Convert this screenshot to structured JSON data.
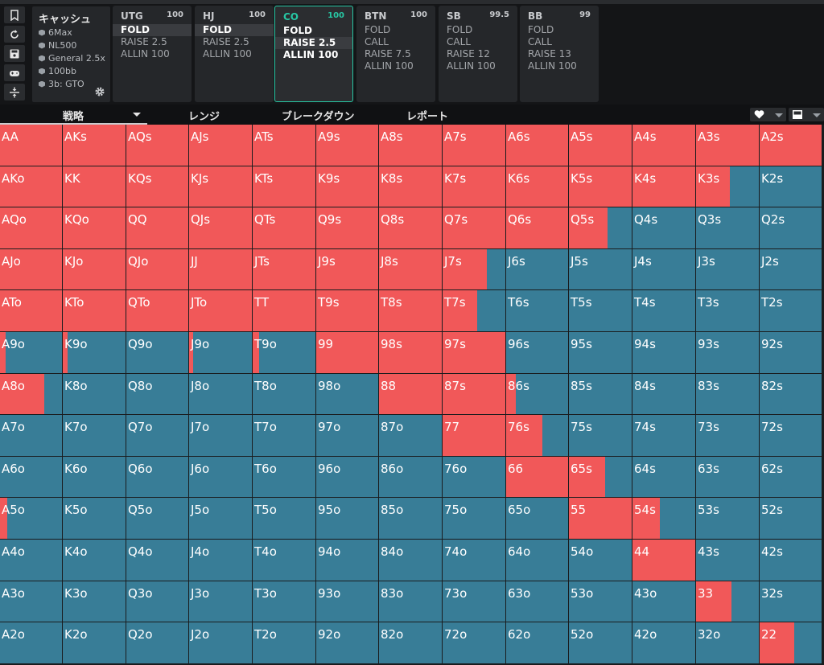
{
  "sidebar_tools": [
    {
      "name": "bookmark-icon"
    },
    {
      "name": "reset-icon"
    },
    {
      "name": "save-icon"
    },
    {
      "name": "gamepad-icon"
    },
    {
      "name": "compress-icon"
    }
  ],
  "info": {
    "title": "キャッシュ",
    "lines": [
      "6Max",
      "NL500",
      "General 2.5x",
      "100bb",
      "3b: GTO"
    ]
  },
  "positions": [
    {
      "name": "UTG",
      "stack": "100",
      "actions": [
        "FOLD",
        "RAISE 2.5",
        "ALLIN 100"
      ],
      "selected": 0,
      "active": false
    },
    {
      "name": "HJ",
      "stack": "100",
      "actions": [
        "FOLD",
        "RAISE 2.5",
        "ALLIN 100"
      ],
      "selected": 0,
      "active": false
    },
    {
      "name": "CO",
      "stack": "100",
      "actions": [
        "FOLD",
        "RAISE 2.5",
        "ALLIN 100"
      ],
      "selected": 1,
      "active": true
    },
    {
      "name": "BTN",
      "stack": "100",
      "actions": [
        "FOLD",
        "CALL",
        "RAISE 7.5",
        "ALLIN 100"
      ],
      "selected": -1,
      "active": false
    },
    {
      "name": "SB",
      "stack": "99.5",
      "actions": [
        "FOLD",
        "CALL",
        "RAISE 12",
        "ALLIN 100"
      ],
      "selected": -1,
      "active": false
    },
    {
      "name": "BB",
      "stack": "99",
      "actions": [
        "FOLD",
        "CALL",
        "RAISE 13",
        "ALLIN 100"
      ],
      "selected": -1,
      "active": false
    }
  ],
  "tabs": {
    "strategy": "戦略",
    "range": "レンジ",
    "breakdown": "ブレークダウン",
    "report": "レポート"
  },
  "colors": {
    "raise": "#f15859",
    "fold": "#387d97",
    "active_accent": "#27c7a4"
  },
  "grid_labels": [
    [
      "AA",
      "AKs",
      "AQs",
      "AJs",
      "ATs",
      "A9s",
      "A8s",
      "A7s",
      "A6s",
      "A5s",
      "A4s",
      "A3s",
      "A2s"
    ],
    [
      "AKo",
      "KK",
      "KQs",
      "KJs",
      "KTs",
      "K9s",
      "K8s",
      "K7s",
      "K6s",
      "K5s",
      "K4s",
      "K3s",
      "K2s"
    ],
    [
      "AQo",
      "KQo",
      "QQ",
      "QJs",
      "QTs",
      "Q9s",
      "Q8s",
      "Q7s",
      "Q6s",
      "Q5s",
      "Q4s",
      "Q3s",
      "Q2s"
    ],
    [
      "AJo",
      "KJo",
      "QJo",
      "JJ",
      "JTs",
      "J9s",
      "J8s",
      "J7s",
      "J6s",
      "J5s",
      "J4s",
      "J3s",
      "J2s"
    ],
    [
      "ATo",
      "KTo",
      "QTo",
      "JTo",
      "TT",
      "T9s",
      "T8s",
      "T7s",
      "T6s",
      "T5s",
      "T4s",
      "T3s",
      "T2s"
    ],
    [
      "A9o",
      "K9o",
      "Q9o",
      "J9o",
      "T9o",
      "99",
      "98s",
      "97s",
      "96s",
      "95s",
      "94s",
      "93s",
      "92s"
    ],
    [
      "A8o",
      "K8o",
      "Q8o",
      "J8o",
      "T8o",
      "98o",
      "88",
      "87s",
      "86s",
      "85s",
      "84s",
      "83s",
      "82s"
    ],
    [
      "A7o",
      "K7o",
      "Q7o",
      "J7o",
      "T7o",
      "97o",
      "87o",
      "77",
      "76s",
      "75s",
      "74s",
      "73s",
      "72s"
    ],
    [
      "A6o",
      "K6o",
      "Q6o",
      "J6o",
      "T6o",
      "96o",
      "86o",
      "76o",
      "66",
      "65s",
      "64s",
      "63s",
      "62s"
    ],
    [
      "A5o",
      "K5o",
      "Q5o",
      "J5o",
      "T5o",
      "95o",
      "85o",
      "75o",
      "65o",
      "55",
      "54s",
      "53s",
      "52s"
    ],
    [
      "A4o",
      "K4o",
      "Q4o",
      "J4o",
      "T4o",
      "94o",
      "84o",
      "74o",
      "64o",
      "54o",
      "44",
      "43s",
      "42s"
    ],
    [
      "A3o",
      "K3o",
      "Q3o",
      "J3o",
      "T3o",
      "93o",
      "83o",
      "73o",
      "63o",
      "53o",
      "43o",
      "33",
      "32s"
    ],
    [
      "A2o",
      "K2o",
      "Q2o",
      "J2o",
      "T2o",
      "92o",
      "82o",
      "72o",
      "62o",
      "52o",
      "42o",
      "32o",
      "22"
    ]
  ],
  "grid_raise_freq": [
    [
      1,
      1,
      1,
      1,
      1,
      1,
      1,
      1,
      1,
      1,
      1,
      1,
      1
    ],
    [
      1,
      1,
      1,
      1,
      1,
      1,
      1,
      1,
      1,
      1,
      1,
      0.54,
      0
    ],
    [
      1,
      1,
      1,
      1,
      1,
      1,
      1,
      1,
      1,
      0.61,
      0,
      0,
      0
    ],
    [
      1,
      1,
      1,
      1,
      1,
      1,
      1,
      0.71,
      0,
      0,
      0,
      0,
      0
    ],
    [
      1,
      1,
      1,
      1,
      1,
      1,
      1,
      0.55,
      0,
      0,
      0,
      0,
      0
    ],
    [
      0.09,
      0.08,
      0,
      0.06,
      0.1,
      1,
      1,
      1,
      0,
      0,
      0,
      0,
      0
    ],
    [
      0.72,
      0,
      0,
      0,
      0,
      0,
      1,
      1,
      0.15,
      0,
      0,
      0,
      0
    ],
    [
      0,
      0,
      0,
      0,
      0,
      0,
      0,
      1,
      0.59,
      0,
      0,
      0,
      0
    ],
    [
      0,
      0,
      0,
      0,
      0,
      0,
      0,
      0,
      1,
      0.58,
      0,
      0,
      0
    ],
    [
      0.12,
      0,
      0,
      0,
      0,
      0,
      0,
      0,
      0,
      1,
      0.43,
      0,
      0
    ],
    [
      0,
      0,
      0,
      0,
      0,
      0,
      0,
      0,
      0,
      0,
      1,
      0,
      0
    ],
    [
      0,
      0,
      0,
      0,
      0,
      0,
      0,
      0,
      0,
      0,
      0,
      0.56,
      0
    ],
    [
      0,
      0,
      0,
      0,
      0,
      0,
      0,
      0,
      0,
      0,
      0,
      0,
      0.56
    ]
  ]
}
